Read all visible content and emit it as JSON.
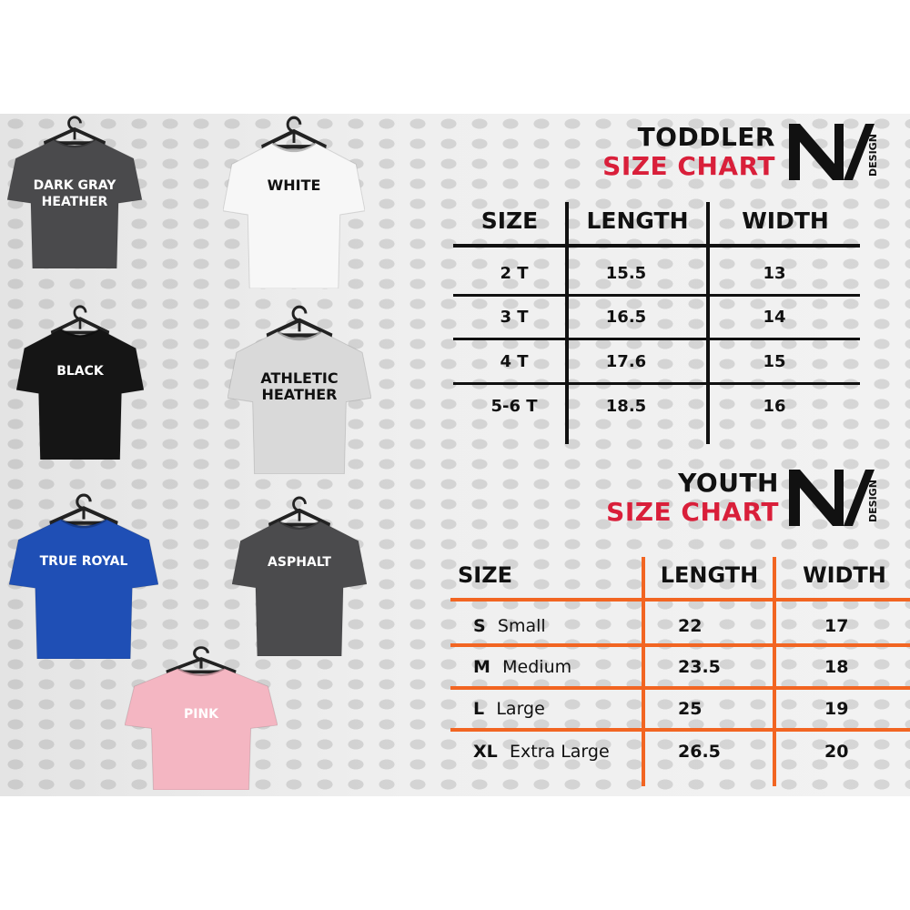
{
  "shirts": [
    {
      "label": "DARK GRAY HEATHER",
      "color": "#4a4a4c"
    },
    {
      "label": "WHITE",
      "color": "#f7f7f7"
    },
    {
      "label": "BLACK",
      "color": "#151515"
    },
    {
      "label": "ATHLETIC HEATHER",
      "color": "#d9d9d9"
    },
    {
      "label": "TRUE ROYAL",
      "color": "#1f4fb5"
    },
    {
      "label": "ASPHALT",
      "color": "#4b4b4d"
    },
    {
      "label": "PINK",
      "color": "#f4b6c2"
    }
  ],
  "brand": {
    "logo_letters": "NV",
    "logo_sub": "DESIGN"
  },
  "toddler": {
    "title_line1": "TODDLER",
    "title_line2": "SIZE CHART",
    "line_color": "#111111",
    "headers": [
      "SIZE",
      "LENGTH",
      "WIDTH"
    ],
    "rows": [
      [
        "2 T",
        "15.5",
        "13"
      ],
      [
        "3 T",
        "16.5",
        "14"
      ],
      [
        "4 T",
        "17.6",
        "15"
      ],
      [
        "5-6 T",
        "18.5",
        "16"
      ]
    ]
  },
  "youth": {
    "title_line1": "YOUTH",
    "title_line2": "SIZE CHART",
    "line_color": "#f26522",
    "headers": [
      "SIZE",
      "LENGTH",
      "WIDTH"
    ],
    "rows": [
      {
        "code": "S",
        "name": "Small",
        "length": "22",
        "width": "17"
      },
      {
        "code": "M",
        "name": "Medium",
        "length": "23.5",
        "width": "18"
      },
      {
        "code": "L",
        "name": "Large",
        "length": "25",
        "width": "19"
      },
      {
        "code": "XL",
        "name": "Extra Large",
        "length": "26.5",
        "width": "20"
      }
    ]
  }
}
